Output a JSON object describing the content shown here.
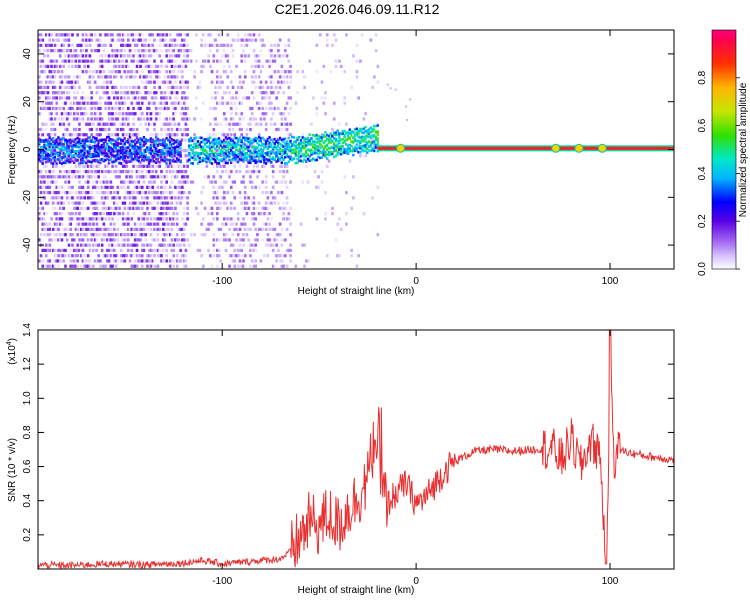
{
  "title": "C2E1.2026.046.09.11.R12",
  "chart_data": [
    {
      "type": "heatmap",
      "panel": "spectrogram",
      "xlabel": "Height of straight line (km)",
      "ylabel": "Frequency (Hz)",
      "xlim": [
        -195,
        133
      ],
      "ylim": [
        -50,
        50
      ],
      "xticks": [
        -100,
        0,
        100
      ],
      "yticks": [
        -40,
        -20,
        0,
        20,
        40
      ],
      "colorbar": {
        "label": "Normalized spectral amplitude",
        "range": [
          0,
          1
        ],
        "ticks": [
          0.0,
          0.2,
          0.4,
          0.6,
          0.8
        ],
        "colormap": [
          "#ffffff",
          "#d0b8ff",
          "#9a5cf0",
          "#5a00e6",
          "#0000ff",
          "#00b4ff",
          "#00e8c8",
          "#30e000",
          "#c8e600",
          "#ffb400",
          "#ff3000",
          "#ff0050"
        ]
      },
      "signal": {
        "noise_region_km": [
          -195,
          -65
        ],
        "broad_noise_km": [
          -195,
          -118
        ],
        "gap_km": [
          -118,
          -108
        ],
        "ramp_region_km": [
          -65,
          -20
        ],
        "stable_line_start_km": -20,
        "stable_line_freq_hz": 0.5,
        "stable_line_amplitude": 0.95
      }
    },
    {
      "type": "line",
      "panel": "snr",
      "xlabel": "Height of straight line (km)",
      "ylabel": "SNR (10 * v/v)",
      "yscale_label": "(x10",
      "yscale_exponent": "4",
      "xlim": [
        -195,
        133
      ],
      "ylim": [
        0,
        14000
      ],
      "xticks": [
        -100,
        0,
        100
      ],
      "yticks": [
        2000,
        4000,
        6000,
        8000,
        10000,
        12000,
        14000
      ],
      "ytick_labels": [
        "0.2",
        "0.4",
        "0.6",
        "0.8",
        "1.0",
        "1.2",
        "1.4"
      ],
      "color": "#e83030",
      "series": [
        {
          "name": "SNR",
          "x": [
            -195,
            -180,
            -160,
            -140,
            -120,
            -110,
            -100,
            -90,
            -80,
            -70,
            -65,
            -60,
            -55,
            -50,
            -45,
            -40,
            -35,
            -30,
            -25,
            -21,
            -18,
            -15,
            -10,
            -5,
            0,
            5,
            10,
            15,
            20,
            25,
            30,
            40,
            50,
            60,
            70,
            75,
            80,
            85,
            90,
            95,
            97,
            99,
            100,
            102,
            105,
            110,
            120,
            133
          ],
          "values": [
            250,
            200,
            300,
            250,
            350,
            500,
            300,
            400,
            500,
            600,
            1000,
            1800,
            2800,
            2500,
            3200,
            2500,
            3500,
            4200,
            5200,
            8000,
            4800,
            3800,
            4500,
            5000,
            3800,
            4200,
            5000,
            5800,
            6300,
            6600,
            6900,
            7000,
            6900,
            7000,
            7100,
            6400,
            7600,
            6000,
            7500,
            6800,
            2000,
            4500,
            14000,
            6500,
            7000,
            6800,
            6600,
            6400
          ]
        }
      ]
    }
  ]
}
